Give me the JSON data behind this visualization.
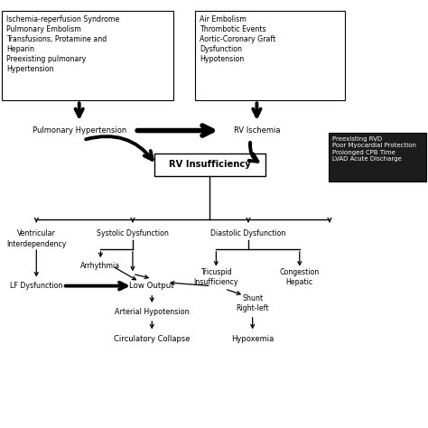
{
  "bg_color": "#ffffff",
  "box1_text": "Ischemia-reperfusion Syndrome\nPulmonary Embolism\nTransfusions, Protamine and\nHeparin\nPreexisting pulmonary\nHypertension",
  "box2_text": "Air Embolism\nThrombotic Events\nAortic-Coronary Graft\nDysfunction\nHypotension",
  "box3_text": "Preexisting RVD\nPoor Myocardial Protection\nProlonged CPB Time\nLVAD Acute Discharge",
  "box3_bg": "#1c1c1c",
  "box3_fg": "#ffffff",
  "pulm_hypert": "Pulmonary Hypertension",
  "rv_ischemia": "RV Ischemia",
  "rv_insuff": "RV Insufficiency",
  "ventricular": "Ventricular\nInterdependency",
  "systolic": "Systolic Dysfunction",
  "diastolic": "Diastolic Dysfunction",
  "arrhythmia": "Arrhythmia",
  "tricuspid": "Tricuspid\nInsufficiency",
  "congestion": "Congestion\nHepatic",
  "lf_dysfunc": "LF Dysfunction",
  "low_output": "Low Output",
  "arterial": "Arterial Hypotension",
  "shunt": "Shunt\nRight-left",
  "circulatory": "Circulatory Collapse",
  "hypoxemia": "Hypoxemia"
}
